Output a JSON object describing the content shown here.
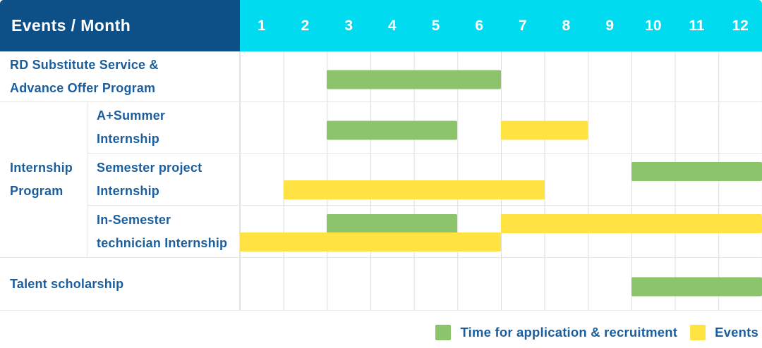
{
  "header": {
    "title": "Events / Month"
  },
  "colors": {
    "header_bg": "#0d4f87",
    "months_bg": "#00dbef",
    "application_green": "#8bc46a",
    "event_yellow": "#fee343",
    "label_text": "#1c5e9c",
    "header_text": "#ffffff"
  },
  "chart_data": {
    "type": "gantt",
    "title": "Events / Month",
    "x_unit": "month",
    "x_range": [
      1,
      12
    ],
    "months": [
      "1",
      "2",
      "3",
      "4",
      "5",
      "6",
      "7",
      "8",
      "9",
      "10",
      "11",
      "12"
    ],
    "grid": true,
    "legend_position": "bottom-right",
    "legend": [
      {
        "type": "application",
        "label": "Time for application & recruitment",
        "color": "#8bc46a"
      },
      {
        "type": "event",
        "label": "Events",
        "color": "#fee343"
      }
    ],
    "group_label": "Internship Program",
    "group_label_lines": [
      "Internship",
      "Program"
    ],
    "rows": [
      {
        "group": null,
        "label": "RD Substitute Service & Advance Offer Program",
        "label_lines": [
          "RD Substitute Service &",
          "Advance Offer Program"
        ],
        "bars": [
          {
            "type": "application",
            "start_month": 3,
            "end_month": 6,
            "lane": "center"
          }
        ]
      },
      {
        "group": "Internship Program",
        "label": "A+Summer Internship",
        "label_lines": [
          "A+Summer",
          "Internship"
        ],
        "bars": [
          {
            "type": "application",
            "start_month": 3,
            "end_month": 5,
            "lane": "center"
          },
          {
            "type": "event",
            "start_month": 7,
            "end_month": 8,
            "lane": "center"
          }
        ]
      },
      {
        "group": "Internship Program",
        "label": "Semester project Internship",
        "label_lines": [
          "Semester project",
          "Internship"
        ],
        "bars": [
          {
            "type": "application",
            "start_month": 10,
            "end_month": 12,
            "lane": "top"
          },
          {
            "type": "event",
            "start_month": 2,
            "end_month": 7,
            "lane": "bottom"
          }
        ]
      },
      {
        "group": "Internship Program",
        "label": "In-Semester technician Internship",
        "label_lines": [
          "In-Semester",
          "technician Internship"
        ],
        "bars": [
          {
            "type": "application",
            "start_month": 3,
            "end_month": 5,
            "lane": "top"
          },
          {
            "type": "event",
            "start_month": 7,
            "end_month": 12,
            "lane": "top"
          },
          {
            "type": "event",
            "start_month": 1,
            "end_month": 6,
            "lane": "bottom"
          }
        ]
      },
      {
        "group": null,
        "label": "Talent scholarship",
        "label_lines": [
          "Talent scholarship"
        ],
        "bars": [
          {
            "type": "application",
            "start_month": 10,
            "end_month": 12,
            "lane": "center"
          }
        ]
      }
    ]
  }
}
